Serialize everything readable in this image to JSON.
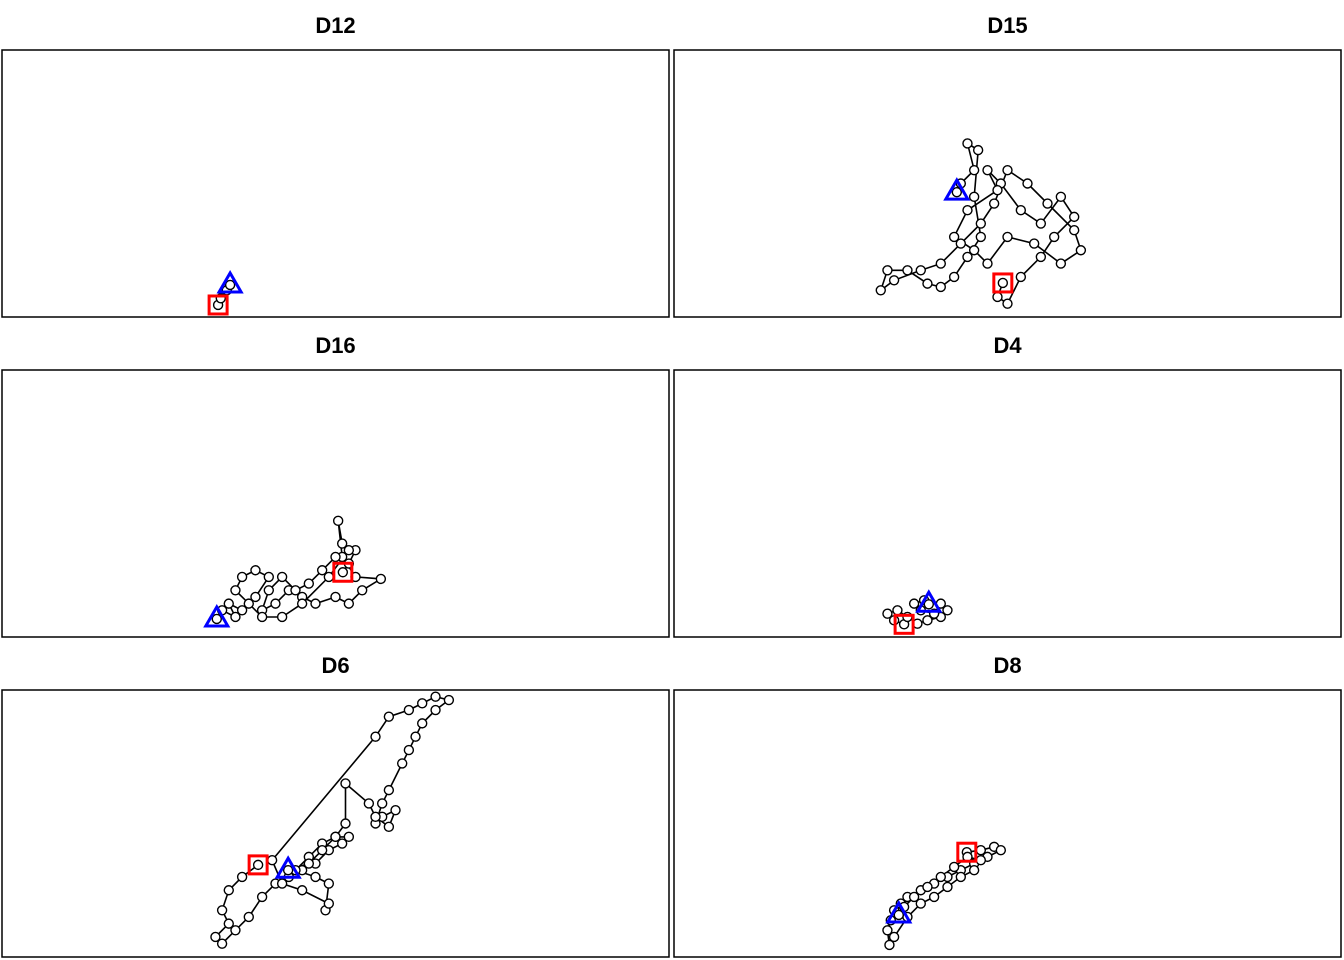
{
  "chart_data": [
    {
      "type": "line",
      "title": "D12",
      "x": [
        32.4,
        32.8,
        33.7,
        34.2
      ],
      "y": [
        1.8,
        2.8,
        4.0,
        4.8
      ],
      "xlim": [
        0,
        100
      ],
      "ylim": [
        0,
        40
      ],
      "color": "#000000",
      "start_color": "#ff0000",
      "end_color": "#0000ff"
    },
    {
      "type": "line",
      "title": "D15",
      "x": [
        49.3,
        48.5,
        50,
        52,
        55,
        57,
        60,
        58,
        55,
        52,
        49,
        47,
        48.5,
        44,
        42,
        45,
        47,
        50,
        54,
        58,
        61,
        60,
        56,
        53,
        50,
        48,
        46,
        43,
        40,
        37,
        33,
        31,
        32,
        35,
        38,
        40,
        42,
        44,
        46,
        45,
        45.6,
        44,
        45,
        43,
        42.4
      ],
      "y": [
        5.1,
        3.0,
        2,
        6,
        9,
        12,
        15,
        18,
        14,
        16,
        20,
        22,
        19,
        16,
        12,
        10,
        8,
        12,
        11,
        8,
        10,
        13,
        17,
        20,
        22,
        17,
        14,
        11,
        8,
        7,
        5.5,
        4,
        7,
        7,
        5,
        4.5,
        6,
        9,
        12,
        18,
        25,
        26,
        22,
        20,
        18.7
      ],
      "xlim": [
        0,
        100
      ],
      "ylim": [
        0,
        40
      ],
      "color": "#000000",
      "start_color": "#ff0000",
      "end_color": "#0000ff"
    },
    {
      "type": "line",
      "title": "D16",
      "x": [
        51.1,
        52,
        53,
        51,
        50.4,
        51,
        53,
        56.8,
        54,
        52,
        50,
        47,
        45,
        43,
        41,
        39,
        40,
        42,
        44,
        46,
        48,
        50,
        52,
        49,
        45,
        42,
        39,
        37,
        35,
        36,
        38,
        40,
        38,
        36,
        34,
        35,
        33,
        32.2
      ],
      "y": [
        9.7,
        11,
        13,
        14,
        17.4,
        12,
        9,
        8.7,
        7,
        5,
        6,
        5,
        6,
        7,
        5,
        4,
        7,
        9,
        7,
        8,
        10,
        12,
        13,
        9,
        5,
        3,
        3,
        5,
        7,
        9,
        10,
        9,
        6,
        4,
        5,
        3,
        4,
        2.7
      ],
      "xlim": [
        0,
        100
      ],
      "ylim": [
        0,
        40
      ],
      "color": "#000000",
      "start_color": "#ff0000",
      "end_color": "#0000ff"
    },
    {
      "type": "line",
      "title": "D4",
      "x": [
        34.5,
        33,
        32,
        33.5,
        35,
        36.5,
        38,
        40,
        41,
        40,
        39,
        37,
        36,
        37.5,
        38.2
      ],
      "y": [
        1.9,
        2.5,
        3.5,
        4,
        3,
        2,
        2.5,
        3,
        4,
        5,
        3.5,
        4,
        5,
        5.5,
        4.9
      ],
      "xlim": [
        0,
        100
      ],
      "ylim": [
        0,
        40
      ],
      "color": "#000000",
      "start_color": "#ff0000",
      "end_color": "#0000ff"
    },
    {
      "type": "line",
      "title": "D6",
      "x": [
        38.4,
        36,
        34,
        33,
        34,
        32,
        33,
        35,
        37,
        39,
        41,
        43,
        45,
        47,
        49,
        51,
        52,
        50,
        48,
        46,
        44,
        47,
        49,
        48.5,
        49,
        45,
        42,
        40.5,
        56,
        58,
        61,
        63,
        65,
        67,
        65,
        63,
        62,
        61,
        60,
        58,
        57,
        56,
        57,
        59,
        58,
        56,
        55,
        51.5,
        51.5,
        50,
        48,
        46,
        42.9
      ],
      "y": [
        13.8,
        12,
        10,
        7,
        5,
        3,
        2,
        4,
        6,
        9,
        11,
        12,
        13,
        14,
        16,
        17,
        18,
        18,
        17,
        15,
        13,
        12,
        11,
        7,
        8,
        10,
        11,
        14.5,
        33,
        36,
        37,
        38,
        39,
        38.5,
        37,
        35,
        33,
        31,
        29,
        25,
        23,
        20,
        21,
        22,
        19.5,
        21,
        23,
        26,
        20,
        18,
        16,
        14,
        13.0
      ],
      "xlim": [
        0,
        100
      ],
      "ylim": [
        0,
        40
      ],
      "color": "#000000",
      "start_color": "#ff0000",
      "end_color": "#0000ff"
    },
    {
      "type": "line",
      "title": "D8",
      "x": [
        43.9,
        46,
        48,
        49,
        47,
        45,
        43,
        41,
        39,
        37,
        35,
        34,
        33,
        32.5,
        32,
        32.3,
        33,
        35,
        37,
        39,
        41,
        43,
        45,
        46,
        44,
        42,
        40,
        38,
        36,
        34.5,
        33.7
      ],
      "y": [
        15.7,
        16,
        16.5,
        16,
        15,
        14,
        13,
        12,
        11,
        10,
        9,
        8,
        7,
        5.5,
        4,
        1.8,
        3,
        6,
        8,
        9,
        10.5,
        12,
        13,
        14.5,
        15,
        13.5,
        12,
        10.5,
        9,
        7.5,
        6.3
      ],
      "xlim": [
        0,
        100
      ],
      "ylim": [
        0,
        40
      ],
      "color": "#000000",
      "start_color": "#ff0000",
      "end_color": "#0000ff"
    }
  ]
}
